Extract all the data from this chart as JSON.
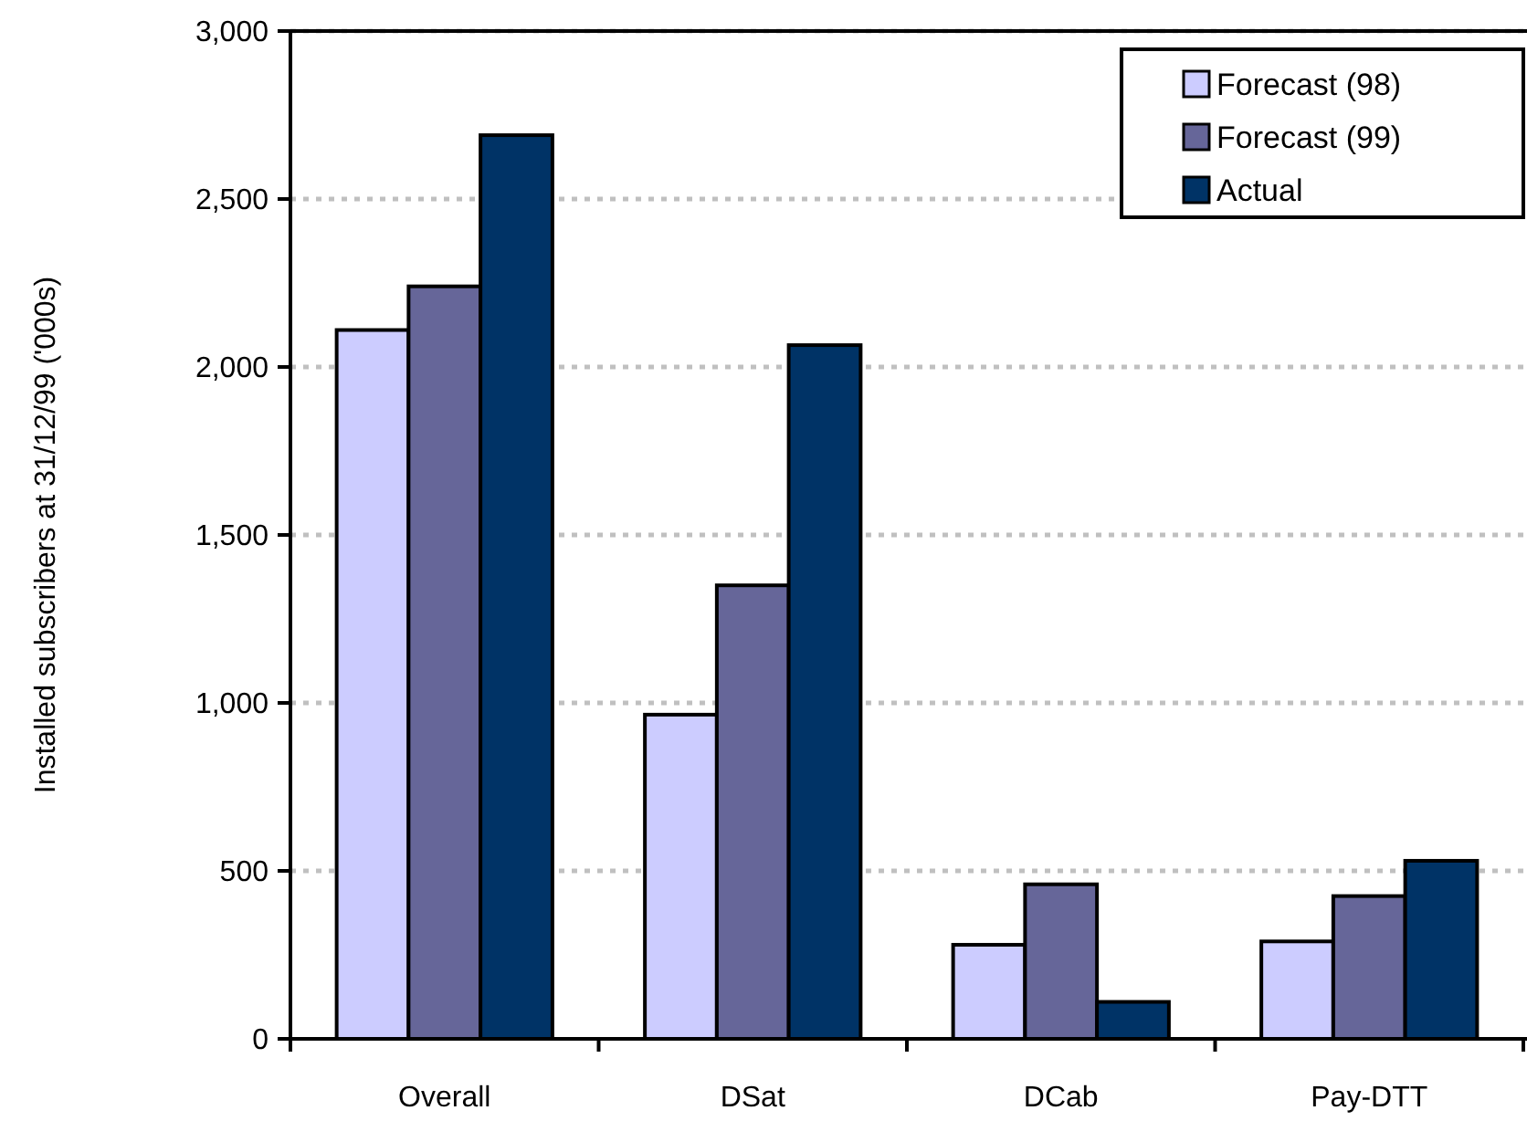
{
  "chart_data": {
    "type": "bar",
    "ylabel": "Installed subscribers at 31/12/99 ('000s)",
    "categories": [
      "Overall",
      "DSat",
      "DCab",
      "Pay-DTT"
    ],
    "series": [
      {
        "name": "Forecast (98)",
        "color": "#ccccff",
        "values": [
          2110,
          965,
          280,
          290
        ]
      },
      {
        "name": "Forecast (99)",
        "color": "#666699",
        "values": [
          2240,
          1350,
          460,
          425
        ]
      },
      {
        "name": "Actual",
        "color": "#003366",
        "values": [
          2690,
          2065,
          110,
          530
        ]
      }
    ],
    "ylim": [
      0,
      3000
    ],
    "yticks": [
      {
        "value": 0,
        "label": "0"
      },
      {
        "value": 500,
        "label": "500"
      },
      {
        "value": 1000,
        "label": "1,000"
      },
      {
        "value": 1500,
        "label": "1,500"
      },
      {
        "value": 2000,
        "label": "2,000"
      },
      {
        "value": 2500,
        "label": "2,500"
      },
      {
        "value": 3000,
        "label": "3,000"
      }
    ],
    "grid": "y",
    "legend": "top right"
  }
}
